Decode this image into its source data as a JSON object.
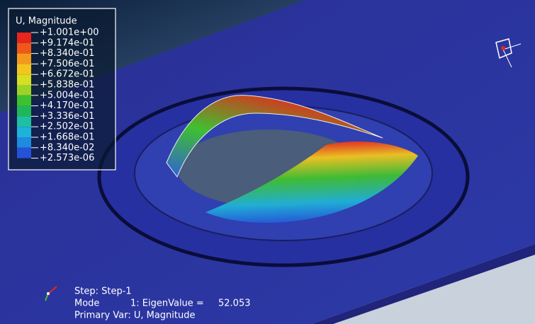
{
  "legend": {
    "title": "U, Magnitude",
    "labels": [
      "+1.001e+00",
      "+9.174e-01",
      "+8.340e-01",
      "+7.506e-01",
      "+6.672e-01",
      "+5.838e-01",
      "+5.004e-01",
      "+4.170e-01",
      "+3.336e-01",
      "+2.502e-01",
      "+1.668e-01",
      "+8.340e-02",
      "+2.573e-06"
    ],
    "colors": [
      "#e8261c",
      "#f0581a",
      "#f39a1e",
      "#f3c51e",
      "#d8de22",
      "#9cd327",
      "#3fc030",
      "#21b65a",
      "#1fc0a0",
      "#1fb2d8",
      "#1e8ae0",
      "#2452d8"
    ]
  },
  "status": {
    "step": "Step: Step-1",
    "mode": "Mode",
    "eigen": "1: EigenValue =",
    "eigen_value": "52.053",
    "primary": "Primary Var: U, Magnitude"
  }
}
